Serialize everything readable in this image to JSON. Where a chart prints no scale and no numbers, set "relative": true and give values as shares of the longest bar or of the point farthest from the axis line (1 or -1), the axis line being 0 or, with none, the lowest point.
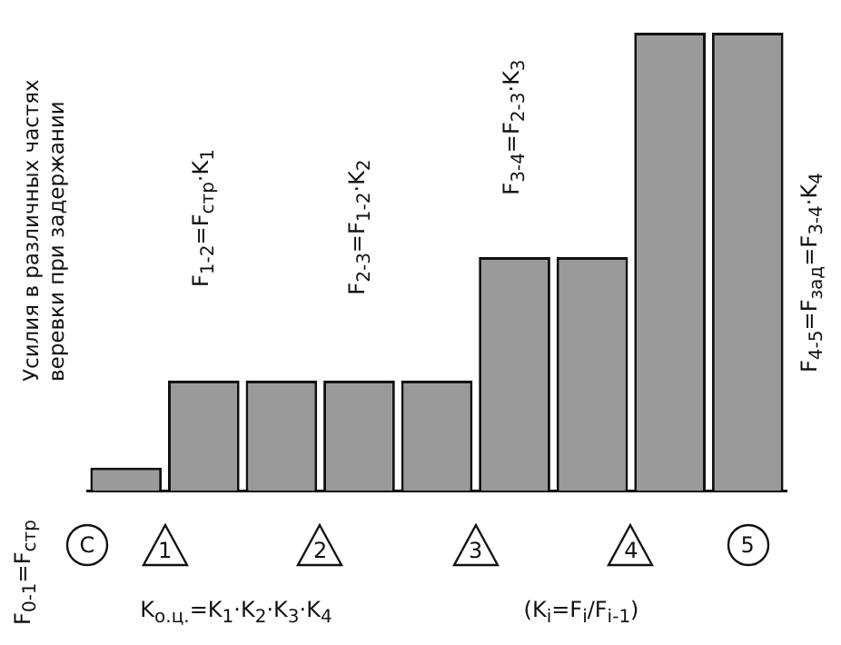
{
  "chart_data": {
    "type": "bar",
    "relative": true,
    "ylabel": "Усилия в различных частях веревки при задержании",
    "categories": [
      null,
      null,
      null,
      null,
      null,
      null,
      null,
      null,
      null
    ],
    "values": [
      0.05,
      0.24,
      0.24,
      0.24,
      0.24,
      0.51,
      0.51,
      1,
      1
    ],
    "color": "#9a9a9a",
    "grid": false,
    "legend": false,
    "annotations": [
      "F$_{1-2}$=F$_{стр}$·K$_{1}$",
      "F$_{2-3}$=F$_{1-2}$·K$_{2}$",
      "F$_{3-4}$=F$_{2-3}$·K$_{3}$",
      "F$_{4-5}$=F$_{зад}$=F$_{3-4}$·K$_{4}$",
      "F$_{0-1}$=F$_{стр}$",
      "K$_{о.ц.}$=K$_{1}$·K$_{2}$·K$_{3}$·K$_{4}$",
      "(K$_{i}$=F$_{i}$/F$_{i-1}$)",
      "С",
      "1",
      "2",
      "3",
      "4",
      "5"
    ]
  }
}
